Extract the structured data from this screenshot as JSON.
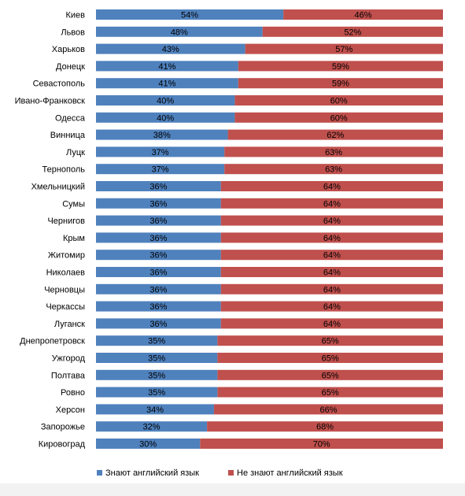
{
  "chart_data": {
    "type": "bar",
    "orientation": "horizontal",
    "stacked": true,
    "categories": [
      "Киев",
      "Львов",
      "Харьков",
      "Донецк",
      "Севастополь",
      "Ивано-Франковск",
      "Одесса",
      "Винница",
      "Луцк",
      "Тернополь",
      "Хмельницкий",
      "Сумы",
      "Чернигов",
      "Крым",
      "Житомир",
      "Николаев",
      "Черновцы",
      "Черкассы",
      "Луганск",
      "Днепропетровск",
      "Ужгород",
      "Полтава",
      "Ровно",
      "Херсон",
      "Запорожье",
      "Кировоград"
    ],
    "series": [
      {
        "name": "Знают английский язык",
        "color": "#4f81bd",
        "values": [
          54,
          48,
          43,
          41,
          41,
          40,
          40,
          38,
          37,
          37,
          36,
          36,
          36,
          36,
          36,
          36,
          36,
          36,
          36,
          35,
          35,
          35,
          35,
          34,
          32,
          30
        ]
      },
      {
        "name": "Не знают английский язык",
        "color": "#c0504d",
        "values": [
          46,
          52,
          57,
          59,
          59,
          60,
          60,
          62,
          63,
          63,
          64,
          64,
          64,
          64,
          64,
          64,
          64,
          64,
          64,
          65,
          65,
          65,
          65,
          66,
          68,
          70
        ]
      }
    ],
    "value_suffix": "%",
    "xlim": [
      0,
      100
    ],
    "legend_position": "bottom",
    "grid": false
  }
}
